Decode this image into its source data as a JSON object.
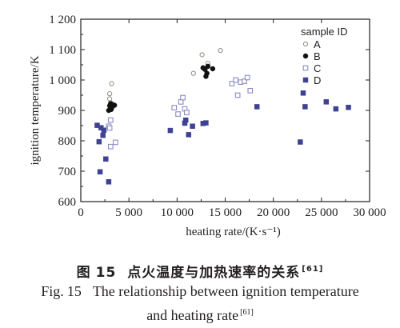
{
  "chart_data": {
    "type": "scatter",
    "xlabel": "heating rate/(K·s⁻¹)",
    "ylabel": "ignition temperature/K",
    "xlim": [
      0,
      30000
    ],
    "ylim": [
      600,
      1200
    ],
    "xticks": [
      0,
      5000,
      10000,
      15000,
      20000,
      25000,
      30000
    ],
    "xtick_labels": [
      "0",
      "5 000",
      "10 000",
      "15 000",
      "20 000",
      "25 000",
      "30 000"
    ],
    "yticks": [
      600,
      700,
      800,
      900,
      1000,
      1100,
      1200
    ],
    "ytick_labels": [
      "600",
      "700",
      "800",
      "900",
      "1 000",
      "1 100",
      "1 200"
    ],
    "grid": false,
    "legend_title": "sample ID",
    "legend_position": "top-right",
    "series": [
      {
        "name": "A",
        "marker": "open-circle",
        "color": "#9a8f86",
        "points": [
          [
            3000,
            955
          ],
          [
            3200,
            988
          ],
          [
            3000,
            938
          ],
          [
            3100,
            925
          ],
          [
            3300,
            912
          ],
          [
            11700,
            1022
          ],
          [
            12600,
            1083
          ],
          [
            13200,
            1055
          ],
          [
            14500,
            1097
          ]
        ]
      },
      {
        "name": "B",
        "marker": "filled-circle",
        "color": "#111111",
        "points": [
          [
            2900,
            900
          ],
          [
            3000,
            915
          ],
          [
            3100,
            922
          ],
          [
            3200,
            908
          ],
          [
            3300,
            919
          ],
          [
            3500,
            917
          ],
          [
            3150,
            903
          ],
          [
            12700,
            1040
          ],
          [
            12900,
            1035
          ],
          [
            13100,
            1022
          ],
          [
            13200,
            1045
          ],
          [
            13000,
            1012
          ],
          [
            13700,
            1037
          ]
        ]
      },
      {
        "name": "C",
        "marker": "open-square",
        "color": "#8a8cc4",
        "points": [
          [
            2900,
            848
          ],
          [
            3100,
            868
          ],
          [
            3000,
            842
          ],
          [
            3100,
            781
          ],
          [
            3600,
            795
          ],
          [
            9700,
            909
          ],
          [
            10100,
            888
          ],
          [
            10400,
            928
          ],
          [
            10600,
            942
          ],
          [
            10800,
            905
          ],
          [
            11000,
            893
          ],
          [
            15700,
            988
          ],
          [
            16100,
            1000
          ],
          [
            16300,
            950
          ],
          [
            16600,
            993
          ],
          [
            17000,
            996
          ],
          [
            17300,
            1008
          ],
          [
            17600,
            965
          ]
        ]
      },
      {
        "name": "D",
        "marker": "filled-square",
        "color": "#3f4294",
        "points": [
          [
            1700,
            851
          ],
          [
            2100,
            843
          ],
          [
            2300,
            818
          ],
          [
            1900,
            797
          ],
          [
            2000,
            698
          ],
          [
            2600,
            740
          ],
          [
            2900,
            665
          ],
          [
            2400,
            835
          ],
          [
            9300,
            834
          ],
          [
            10800,
            858
          ],
          [
            10900,
            868
          ],
          [
            11200,
            820
          ],
          [
            11600,
            848
          ],
          [
            12700,
            857
          ],
          [
            13000,
            859
          ],
          [
            18300,
            912
          ],
          [
            22800,
            796
          ],
          [
            23100,
            957
          ],
          [
            23300,
            912
          ],
          [
            25500,
            928
          ],
          [
            26500,
            905
          ],
          [
            27800,
            910
          ]
        ]
      }
    ]
  },
  "caption": {
    "cn_label": "图",
    "cn_number": "15",
    "cn_text": "点火温度与加热速率的关系",
    "cn_ref": "[61]",
    "en_label": "Fig.",
    "en_number": "15",
    "en_text_line1": "The relationship between ignition temperature",
    "en_text_line2": "and heating rate",
    "en_ref": "[61]"
  }
}
